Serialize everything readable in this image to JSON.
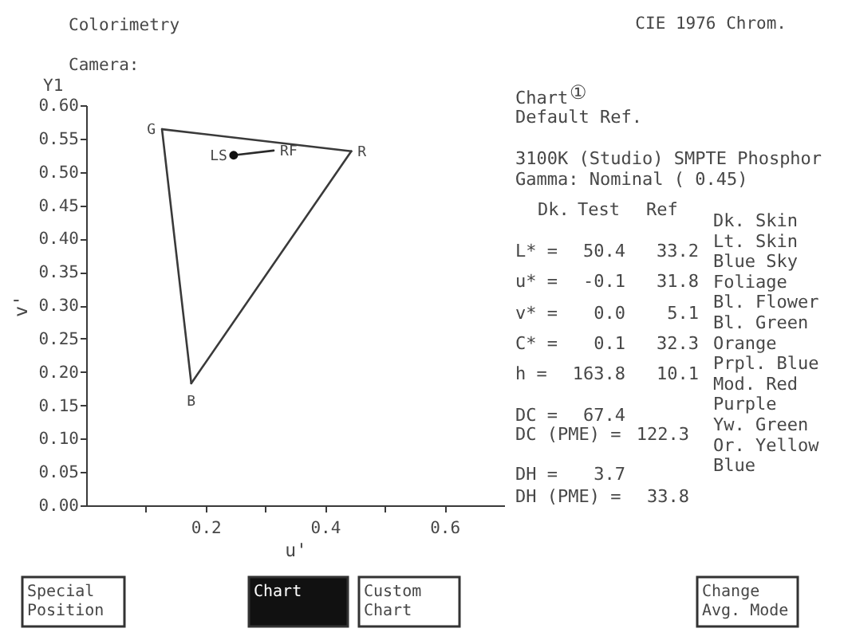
{
  "chart_data": [
    {
      "type": "line",
      "xlabel": "u'",
      "ylabel": "v'",
      "annotations": [
        "Colorimetry",
        "Camera:",
        "CIE 1976 Chrom.",
        "Y1",
        {
          "text": "G",
          "x": 0.127,
          "y": 0.564
        },
        {
          "text": "R",
          "x": 0.444,
          "y": 0.531
        },
        {
          "text": "B",
          "x": 0.176,
          "y": 0.183
        },
        {
          "text": "LS",
          "x": 0.247,
          "y": 0.525
        },
        {
          "text": "RF",
          "x": 0.314,
          "y": 0.532
        }
      ],
      "series": [
        {
          "type": "line",
          "color": "#3a3a3a",
          "x": [
            0.127,
            0.444
          ],
          "values": [
            0.564,
            0.531
          ]
        },
        {
          "type": "line",
          "color": "#3a3a3a",
          "x": [
            0.444,
            0.176
          ],
          "values": [
            0.531,
            0.183
          ]
        },
        {
          "type": "line",
          "color": "#3a3a3a",
          "x": [
            0.176,
            0.127
          ],
          "values": [
            0.183,
            0.564
          ]
        },
        {
          "type": "line",
          "color": "#2a2a2a",
          "x": [
            0.247,
            0.314
          ],
          "values": [
            0.525,
            0.532
          ]
        },
        {
          "type": "scatter",
          "color": "#111111",
          "marker": "circle",
          "x": [
            0.247
          ],
          "values": [
            0.525
          ]
        }
      ],
      "xlim": [
        0,
        0.7
      ],
      "ylim": [
        0,
        0.6
      ],
      "xticks": [
        {
          "value": 0.1,
          "label": null
        },
        0.2,
        {
          "value": 0.3,
          "label": null
        },
        0.4,
        {
          "value": 0.5,
          "label": null
        },
        0.6
      ],
      "yticks": [
        {
          "value": 0,
          "label": "0.00"
        },
        0.05,
        {
          "value": 0.1,
          "label": "0.10"
        },
        0.15,
        {
          "value": 0.2,
          "label": "0.20"
        },
        0.25,
        {
          "value": 0.3,
          "label": "0.30"
        },
        0.35,
        {
          "value": 0.4,
          "label": "0.40"
        },
        0.45,
        {
          "value": 0.5,
          "label": "0.50"
        },
        0.55,
        {
          "value": 0.6,
          "label": "0.60"
        }
      ]
    },
    {
      "type": "other",
      "annotations": [
        "Chart",
        "①",
        "Default Ref.",
        "3100K (Studio) SMPTE Phosphor",
        "Gamma: Nominal ( 0.45)",
        "Dk.",
        "Test",
        "Ref",
        "L* =",
        "50.4",
        "33.2",
        "u* =",
        "-0.1",
        "31.8",
        "v* =",
        "0.0",
        "5.1",
        "C* =",
        "0.1",
        "32.3",
        "h =",
        "163.8",
        "10.1",
        "DC =",
        "67.4",
        "DC (PME) =",
        "122.3",
        "DH =",
        "3.7",
        "DH (PME) =",
        "33.8",
        "Dk. Skin",
        "Lt. Skin",
        "Blue Sky",
        "Foliage",
        "Bl. Flower",
        "Bl. Green",
        "Orange",
        "Prpl. Blue",
        "Mod. Red",
        "Purple",
        "Yw. Green",
        "Or. Yellow",
        "Blue"
      ]
    },
    {
      "type": "other",
      "annotations": [
        "Special Position",
        "Chart",
        "Custom Chart",
        "Change Avg. Mode"
      ]
    }
  ]
}
